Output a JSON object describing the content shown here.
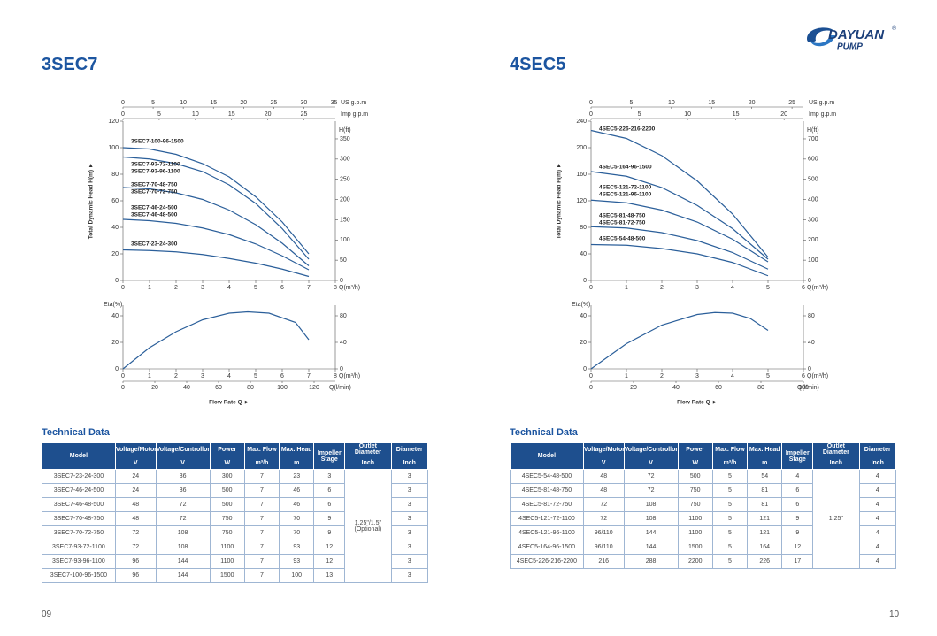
{
  "logo": {
    "name": "DAYUAN",
    "sub": "PUMP",
    "mark": "®"
  },
  "sections": [
    {
      "title": "3SEC7",
      "page_number": "09",
      "head_chart": {
        "type": "line",
        "y_label": "Total Dynamic Head H(m) ►",
        "x_unit": "Q(m³/h)",
        "y2_unit": "H(ft)",
        "top1_unit": "US g.p.m",
        "top2_unit": "Imp g.p.m",
        "xlim": [
          0,
          8
        ],
        "xticks": [
          0,
          1,
          2,
          3,
          4,
          5,
          6,
          7,
          8
        ],
        "ylim": [
          0,
          120
        ],
        "yticks": [
          0,
          20,
          40,
          60,
          80,
          100,
          120
        ],
        "y2lim": [
          0,
          393.7
        ],
        "y2ticks": [
          0,
          50,
          100,
          150,
          200,
          250,
          300,
          350
        ],
        "top1lim": [
          0,
          35.22
        ],
        "top1ticks": [
          0,
          5,
          10,
          15,
          20,
          25,
          30,
          35
        ],
        "top2lim": [
          0,
          29.33
        ],
        "top2ticks": [
          0,
          5,
          10,
          15,
          20,
          25
        ],
        "color": "#2b5f9a",
        "series": [
          {
            "labels": [
              "3SEC7-100-96-1500"
            ],
            "x": [
              0,
              1,
              2,
              3,
              4,
              5,
              6,
              7
            ],
            "values": [
              100,
              99,
              95,
              88,
              78,
              63,
              44,
              20
            ]
          },
          {
            "labels": [
              "3SEC7-93-72-1100",
              "3SEC7-93-96-1100"
            ],
            "x": [
              0,
              1,
              2,
              3,
              4,
              5,
              6,
              7
            ],
            "values": [
              93,
              91.5,
              88,
              82,
              72,
              58,
              39,
              16
            ]
          },
          {
            "labels": [
              "3SEC7-70-48-750",
              "3SEC7-70-72-750"
            ],
            "x": [
              0,
              1,
              2,
              3,
              4,
              5,
              6,
              7
            ],
            "values": [
              70,
              69,
              66,
              61,
              53,
              42,
              28,
              11
            ]
          },
          {
            "labels": [
              "3SEC7-46-24-500",
              "3SEC7-46-48-500"
            ],
            "x": [
              0,
              1,
              2,
              3,
              4,
              5,
              6,
              7
            ],
            "values": [
              46,
              45,
              43,
              39.5,
              34.5,
              27.5,
              18.5,
              8
            ]
          },
          {
            "labels": [
              "3SEC7-23-24-300"
            ],
            "x": [
              0,
              1,
              2,
              3,
              4,
              5,
              6,
              7
            ],
            "values": [
              23,
              22.5,
              21.5,
              19.5,
              16.5,
              13,
              8.5,
              3
            ]
          }
        ]
      },
      "eff_chart": {
        "type": "line",
        "y_label": "Eta(%)",
        "x_label": "Flow Rate Q ►",
        "x_unit": "Q(m³/h)",
        "x2_unit": "Q(l/min)",
        "xlim": [
          0,
          8
        ],
        "xticks": [
          0,
          1,
          2,
          3,
          4,
          5,
          6,
          7,
          8
        ],
        "x2lim": [
          0,
          133.33
        ],
        "x2ticks": [
          0,
          20,
          40,
          60,
          80,
          100,
          120
        ],
        "ylim": [
          0,
          48
        ],
        "yticks": [
          0,
          20,
          40
        ],
        "y2lim": [
          0,
          96
        ],
        "y2ticks": [
          0,
          40,
          80
        ],
        "color": "#2b5f9a",
        "series": [
          {
            "x": [
              0,
              1,
              2,
              3,
              4,
              4.7,
              5.5,
              6.5,
              7
            ],
            "values": [
              0,
              16,
              28,
              37,
              42,
              43,
              42,
              35,
              22
            ]
          }
        ]
      },
      "table": {
        "title": "Technical Data",
        "header": [
          "Model",
          "Voltage/Motor",
          "Voltage/Controllor",
          "Power",
          "Max. Flow",
          "Max. Head",
          "Impeller Stage",
          "Outlet Diameter",
          "Diameter"
        ],
        "units": [
          "V",
          "V",
          "W",
          "m³/h",
          "m",
          "Inch",
          "Inch"
        ],
        "outlet": [
          "1.25\"/1.5\"",
          "(Optional)"
        ],
        "rows": [
          [
            "3SEC7-23-24-300",
            24,
            36,
            300,
            7,
            23,
            3,
            3
          ],
          [
            "3SEC7-46-24-500",
            24,
            36,
            500,
            7,
            46,
            6,
            3
          ],
          [
            "3SEC7-46-48-500",
            48,
            72,
            500,
            7,
            46,
            6,
            3
          ],
          [
            "3SEC7-70-48-750",
            48,
            72,
            750,
            7,
            70,
            9,
            3
          ],
          [
            "3SEC7-70-72-750",
            72,
            108,
            750,
            7,
            70,
            9,
            3
          ],
          [
            "3SEC7-93-72-1100",
            72,
            108,
            1100,
            7,
            93,
            12,
            3
          ],
          [
            "3SEC7-93-96-1100",
            96,
            144,
            1100,
            7,
            93,
            12,
            3
          ],
          [
            "3SEC7-100-96-1500",
            96,
            144,
            1500,
            7,
            100,
            13,
            3
          ]
        ]
      }
    },
    {
      "title": "4SEC5",
      "page_number": "10",
      "head_chart": {
        "type": "line",
        "y_label": "Total Dynamic Head H(m) ►",
        "x_unit": "Q(m³/h)",
        "y2_unit": "H(ft)",
        "top1_unit": "US g.p.m",
        "top2_unit": "Imp g.p.m",
        "xlim": [
          0,
          6
        ],
        "xticks": [
          0,
          1,
          2,
          3,
          4,
          5,
          6
        ],
        "ylim": [
          0,
          240
        ],
        "yticks": [
          0,
          40,
          80,
          120,
          160,
          200,
          240
        ],
        "y2lim": [
          0,
          787.4
        ],
        "y2ticks": [
          0,
          100,
          200,
          300,
          400,
          500,
          600,
          700
        ],
        "top1lim": [
          0,
          26.42
        ],
        "top1ticks": [
          0,
          5,
          10,
          15,
          20,
          25
        ],
        "top2lim": [
          0,
          22
        ],
        "top2ticks": [
          0,
          5,
          10,
          15,
          20
        ],
        "color": "#2b5f9a",
        "series": [
          {
            "labels": [
              "4SEC5-226-216-2200"
            ],
            "x": [
              0,
              1,
              2,
              3,
              4,
              5
            ],
            "values": [
              226,
              214,
              188,
              150,
              100,
              35
            ]
          },
          {
            "labels": [
              "4SEC5-164-96-1500"
            ],
            "x": [
              0,
              1,
              2,
              3,
              4,
              5
            ],
            "values": [
              164,
              157,
              140,
              113,
              78,
              32
            ]
          },
          {
            "labels": [
              "4SEC5-121-72-1100",
              "4SEC5-121-96-1100"
            ],
            "x": [
              0,
              1,
              2,
              3,
              4,
              5
            ],
            "values": [
              121,
              117,
              106,
              88,
              62,
              28
            ]
          },
          {
            "labels": [
              "4SEC5-81-48-750",
              "4SEC5-81-72-750"
            ],
            "x": [
              0,
              1,
              2,
              3,
              4,
              5
            ],
            "values": [
              81,
              79,
              72,
              60,
              42,
              17
            ]
          },
          {
            "labels": [
              "4SEC5-54-48-500"
            ],
            "x": [
              0,
              1,
              2,
              3,
              4,
              5
            ],
            "values": [
              54,
              53,
              48,
              40,
              27,
              7
            ]
          }
        ]
      },
      "eff_chart": {
        "type": "line",
        "y_label": "Eta(%)",
        "x_label": "Flow Rate Q ►",
        "x_unit": "Q(m³/h)",
        "x2_unit": "Q(l/min)",
        "xlim": [
          0,
          6
        ],
        "xticks": [
          0,
          1,
          2,
          3,
          4,
          5,
          6
        ],
        "x2lim": [
          0,
          100
        ],
        "x2ticks": [
          0,
          20,
          40,
          60,
          80,
          100
        ],
        "ylim": [
          0,
          48
        ],
        "yticks": [
          0,
          20,
          40
        ],
        "y2lim": [
          0,
          96
        ],
        "y2ticks": [
          0,
          40,
          80
        ],
        "color": "#2b5f9a",
        "series": [
          {
            "x": [
              0,
              1,
              2,
              3,
              3.5,
              4,
              4.5,
              5
            ],
            "values": [
              0,
              19,
              33,
              41,
              42.5,
              42,
              38,
              29
            ]
          }
        ]
      },
      "table": {
        "title": "Technical Data",
        "header": [
          "Model",
          "Voltage/Motor",
          "Voltage/Controllor",
          "Power",
          "Max. Flow",
          "Max. Head",
          "Impeller Stage",
          "Outlet Diameter",
          "Diameter"
        ],
        "units": [
          "V",
          "V",
          "W",
          "m³/h",
          "m",
          "Inch",
          "Inch"
        ],
        "outlet": [
          "1.25\""
        ],
        "rows": [
          [
            "4SEC5-54-48-500",
            48,
            72,
            500,
            5,
            54,
            4,
            4
          ],
          [
            "4SEC5-81-48-750",
            48,
            72,
            750,
            5,
            81,
            6,
            4
          ],
          [
            "4SEC5-81-72-750",
            72,
            108,
            750,
            5,
            81,
            6,
            4
          ],
          [
            "4SEC5-121-72-1100",
            72,
            108,
            1100,
            5,
            121,
            9,
            4
          ],
          [
            "4SEC5-121-96-1100",
            "96/110",
            144,
            1100,
            5,
            121,
            9,
            4
          ],
          [
            "4SEC5-164-96-1500",
            "96/110",
            144,
            1500,
            5,
            164,
            12,
            4
          ],
          [
            "4SEC5-226-216-2200",
            216,
            288,
            2200,
            5,
            226,
            17,
            4
          ]
        ]
      }
    }
  ]
}
